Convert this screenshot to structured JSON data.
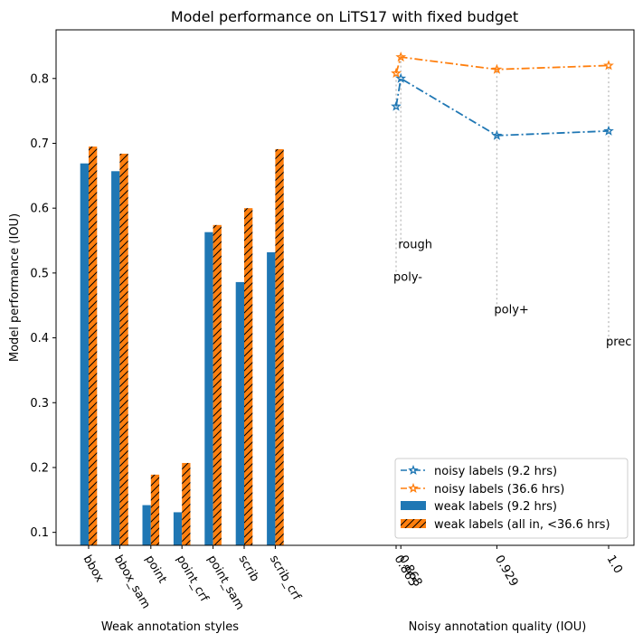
{
  "chart_data": {
    "type": "bar",
    "title": "Model performance on LiTS17 with fixed budget",
    "ylabel": "Model performance (IOU)",
    "ylim": [
      0.08,
      0.875
    ],
    "yticks": [
      "0.1",
      "0.2",
      "0.3",
      "0.4",
      "0.5",
      "0.6",
      "0.7",
      "0.8"
    ],
    "yticks_values": [
      0.1,
      0.2,
      0.3,
      0.4,
      0.5,
      0.6,
      0.7,
      0.8
    ],
    "weak": {
      "xlabel": "Weak annotation styles",
      "categories": [
        "bbox",
        "bbox_sam",
        "point",
        "point_crf",
        "point_sam",
        "scrib",
        "scrib_crf"
      ],
      "series": [
        {
          "name": "weak labels (9.2 hrs)",
          "color": "#1f77b4",
          "hatch": false,
          "values": [
            0.669,
            0.657,
            0.142,
            0.131,
            0.563,
            0.486,
            0.532
          ]
        },
        {
          "name": "weak labels (all in, <36.6 hrs)",
          "color": "#ff7f0e",
          "hatch": true,
          "values": [
            0.695,
            0.684,
            0.189,
            0.207,
            0.574,
            0.6,
            0.691
          ]
        }
      ]
    },
    "noisy": {
      "xlabel": "Noisy annotation quality (IOU)",
      "x": [
        0.865,
        0.868,
        0.929,
        1.0
      ],
      "xticks": [
        "0.865",
        "0.868",
        "0.929",
        "1.0"
      ],
      "series": [
        {
          "name": "noisy labels (9.2 hrs)",
          "color": "#1f77b4",
          "style": "dashdot",
          "marker": "star",
          "values": [
            0.757,
            0.8,
            0.712,
            0.719
          ]
        },
        {
          "name": "noisy labels (36.6 hrs)",
          "color": "#ff7f0e",
          "style": "dashdot",
          "marker": "star",
          "values": [
            0.808,
            0.833,
            0.814,
            0.82
          ]
        }
      ],
      "annotations": [
        {
          "text": "poly-",
          "x": 0.865,
          "y": 0.495
        },
        {
          "text": "rough",
          "x": 0.868,
          "y": 0.545
        },
        {
          "text": "poly+",
          "x": 0.929,
          "y": 0.445
        },
        {
          "text": "prec",
          "x": 1.0,
          "y": 0.395
        }
      ]
    },
    "legend": {
      "position": "bottom-right",
      "entries": [
        "noisy labels (9.2 hrs)",
        "noisy labels (36.6 hrs)",
        "weak labels (9.2 hrs)",
        "weak labels (all in, <36.6 hrs)"
      ]
    }
  }
}
